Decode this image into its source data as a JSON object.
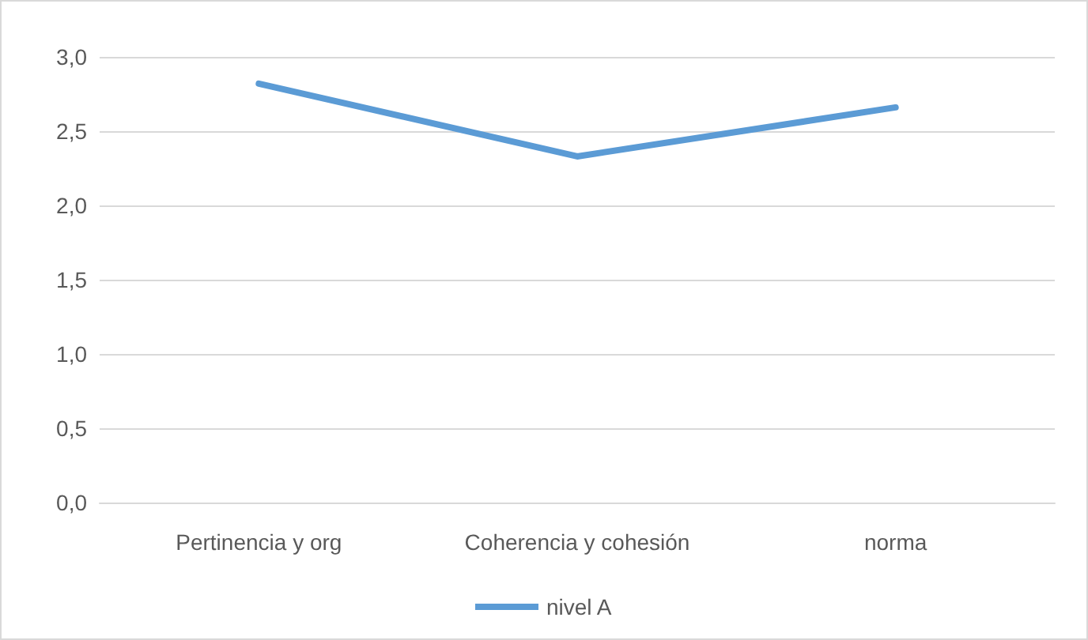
{
  "chart_data": {
    "type": "line",
    "categories": [
      "Pertinencia y org",
      "Coherencia y cohesión",
      "norma"
    ],
    "series": [
      {
        "name": "nivel A",
        "color": "#5b9bd5",
        "values": [
          2.82,
          2.33,
          2.66
        ]
      }
    ],
    "ylim": [
      0,
      3
    ],
    "yticks": [
      {
        "value": 0,
        "label": "0,0"
      },
      {
        "value": 0.5,
        "label": "0,5"
      },
      {
        "value": 1,
        "label": "1,0"
      },
      {
        "value": 1.5,
        "label": "1,5"
      },
      {
        "value": 2,
        "label": "2,0"
      },
      {
        "value": 2.5,
        "label": "2,5"
      },
      {
        "value": 3,
        "label": "3,0"
      }
    ],
    "grid": "y",
    "legend": "bottom",
    "marker": "none",
    "line_style": "solid"
  }
}
